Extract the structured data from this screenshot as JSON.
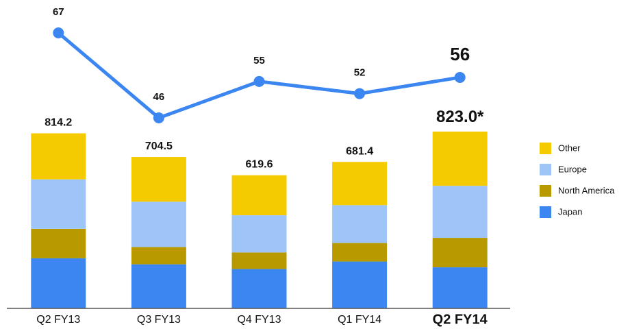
{
  "chart_data": {
    "type": "bar",
    "categories": [
      "Q2 FY13",
      "Q3 FY13",
      "Q4 FY13",
      "Q1 FY14",
      "Q2 FY14"
    ],
    "series": [
      {
        "name": "Japan",
        "color": "#3b86f0",
        "values": [
          233,
          205,
          183,
          218,
          191
        ]
      },
      {
        "name": "North America",
        "color": "#b89a00",
        "values": [
          137,
          80,
          77,
          86,
          137
        ]
      },
      {
        "name": "Europe",
        "color": "#9fc5f8",
        "values": [
          230,
          211,
          173,
          176,
          242
        ]
      },
      {
        "name": "Other",
        "color": "#f4cb00",
        "values": [
          214,
          208,
          186,
          201,
          252
        ]
      }
    ],
    "totals": {
      "values": [
        814.2,
        704.5,
        619.6,
        681.4,
        823.0
      ],
      "value_labels": [
        "814.2",
        "704.5",
        "619.6",
        "681.4",
        "823.0*"
      ]
    },
    "line": {
      "color": "#3b86f0",
      "values": [
        67,
        46,
        55,
        52,
        56
      ]
    },
    "stacked": true
  }
}
